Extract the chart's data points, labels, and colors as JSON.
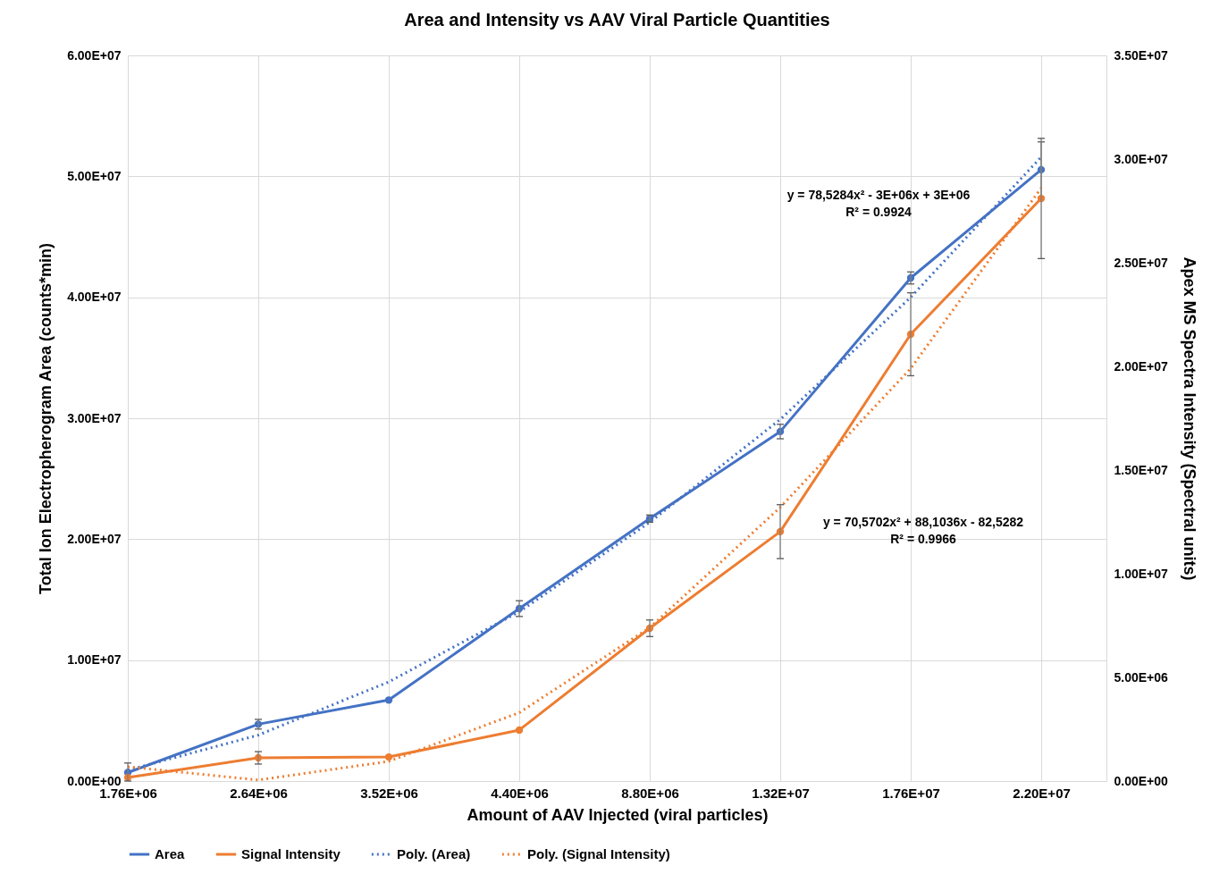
{
  "chart_data": {
    "type": "line",
    "title": "Area and Intensity vs AAV Viral Particle Quantities",
    "xlabel": "Amount of AAV Injected (viral particles)",
    "ylabel": "Total Ion Electropherogram Area (counts*min)",
    "y2label": "Apex MS Spectra Intensity (Spectral units)",
    "categories": [
      "1.76E+06",
      "2.64E+06",
      "3.52E+06",
      "4.40E+06",
      "8.80E+06",
      "1.32E+07",
      "1.76E+07",
      "2.20E+07"
    ],
    "series": [
      {
        "name": "Area",
        "color": "#4472c4",
        "values": [
          700000,
          4700000,
          6700000,
          14260000,
          21700000,
          28900000,
          41600000,
          50550000
        ],
        "errors": [
          null,
          400000,
          null,
          650000,
          300000,
          600000,
          500000,
          2300000
        ]
      },
      {
        "name": "Signal Intensity",
        "color": "#ed7d31",
        "axis": "y2",
        "values": [
          170000,
          1120000,
          1160000,
          2460000,
          7370000,
          12030000,
          21550000,
          28100000
        ],
        "errors": [
          [
            0,
            870000
          ],
          300000,
          null,
          null,
          400000,
          1300000,
          2000000,
          2900000
        ]
      },
      {
        "name": "Poly. (Area)",
        "color": "#4472c4",
        "line_style": "dotted",
        "marker": "none",
        "values": [
          900000,
          3800000,
          8200000,
          14000000,
          21400000,
          29900000,
          40000000,
          51600000
        ]
      },
      {
        "name": "Poly. (Signal Intensity)",
        "color": "#ed7d31",
        "axis": "y2",
        "line_style": "dotted",
        "marker": "none",
        "values": [
          690000,
          50000,
          950000,
          3300000,
          7400000,
          13200000,
          19900000,
          28600000
        ]
      }
    ],
    "ylim": [
      0,
      60000000
    ],
    "yticks": [
      {
        "value": 0,
        "label": "0.00E+00"
      },
      {
        "value": 10000000,
        "label": "1.00E+07"
      },
      {
        "value": 20000000,
        "label": "2.00E+07"
      },
      {
        "value": 30000000,
        "label": "3.00E+07"
      },
      {
        "value": 40000000,
        "label": "4.00E+07"
      },
      {
        "value": 50000000,
        "label": "5.00E+07"
      },
      {
        "value": 60000000,
        "label": "6.00E+07"
      }
    ],
    "y2lim": [
      0,
      35000000
    ],
    "y2ticks": [
      {
        "value": 0,
        "label": "0.00E+00"
      },
      {
        "value": 5000000,
        "label": "5.00E+06"
      },
      {
        "value": 10000000,
        "label": "1.00E+07"
      },
      {
        "value": 15000000,
        "label": "1.50E+07"
      },
      {
        "value": 20000000,
        "label": "2.00E+07"
      },
      {
        "value": 25000000,
        "label": "2.50E+07"
      },
      {
        "value": 30000000,
        "label": "3.00E+07"
      },
      {
        "value": 35000000,
        "label": "3.50E+07"
      }
    ],
    "annotations": [
      "y = 78,5284x² - 3E+06x + 3E+06\nR² = 0.9924",
      "y = 70,5702x² + 88,1036x - 82,5282\nR² = 0.9966"
    ],
    "marker": "circle",
    "line_style": "solid",
    "grid": true,
    "legend": "bottom"
  }
}
